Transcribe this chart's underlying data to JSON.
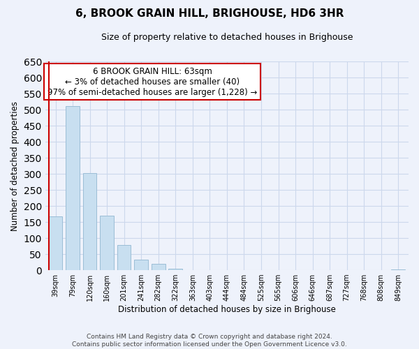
{
  "title": "6, BROOK GRAIN HILL, BRIGHOUSE, HD6 3HR",
  "subtitle": "Size of property relative to detached houses in Brighouse",
  "xlabel": "Distribution of detached houses by size in Brighouse",
  "ylabel": "Number of detached properties",
  "bins": [
    "39sqm",
    "79sqm",
    "120sqm",
    "160sqm",
    "201sqm",
    "241sqm",
    "282sqm",
    "322sqm",
    "363sqm",
    "403sqm",
    "444sqm",
    "484sqm",
    "525sqm",
    "565sqm",
    "606sqm",
    "646sqm",
    "687sqm",
    "727sqm",
    "768sqm",
    "808sqm",
    "849sqm"
  ],
  "values": [
    167,
    510,
    302,
    169,
    78,
    32,
    20,
    5,
    0,
    0,
    0,
    0,
    0,
    0,
    0,
    0,
    0,
    0,
    0,
    0,
    2
  ],
  "bar_color": "#c8dff0",
  "bar_edge_color": "#9bbdd6",
  "highlight_color": "#cc0000",
  "ylim": [
    0,
    650
  ],
  "yticks": [
    0,
    50,
    100,
    150,
    200,
    250,
    300,
    350,
    400,
    450,
    500,
    550,
    600,
    650
  ],
  "annotation_title": "6 BROOK GRAIN HILL: 63sqm",
  "annotation_line1": "← 3% of detached houses are smaller (40)",
  "annotation_line2": "97% of semi-detached houses are larger (1,228) →",
  "annotation_box_color": "#ffffff",
  "annotation_box_edge": "#cc0000",
  "vline_color": "#cc0000",
  "footer1": "Contains HM Land Registry data © Crown copyright and database right 2024.",
  "footer2": "Contains public sector information licensed under the Open Government Licence v3.0.",
  "grid_color": "#ccd8ec",
  "bg_color": "#eef2fb"
}
